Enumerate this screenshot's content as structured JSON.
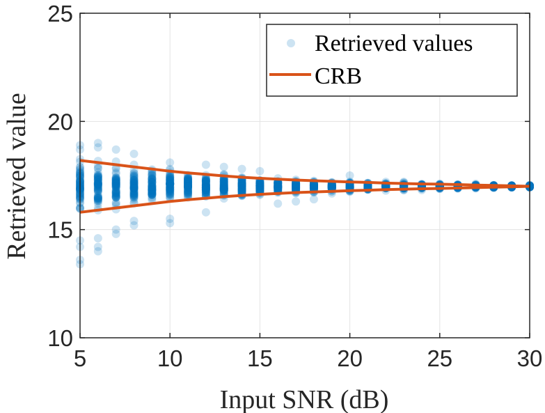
{
  "chart_data": {
    "type": "scatter",
    "xlabel": "Input SNR (dB)",
    "ylabel": "Retrieved value",
    "xlim": [
      5,
      30
    ],
    "ylim": [
      10,
      25
    ],
    "xticks": [
      "5",
      "10",
      "15",
      "20",
      "25",
      "30"
    ],
    "yticks": [
      "10",
      "15",
      "20",
      "25"
    ],
    "grid": true,
    "legend": {
      "placement": "top-right",
      "entries": [
        "Retrieved values",
        "CRB"
      ]
    },
    "series": [
      {
        "name": "Retrieved values",
        "kind": "scatter",
        "color": "#0072BD",
        "x": [
          5,
          6,
          7,
          8,
          9,
          10,
          11,
          12,
          13,
          14,
          15,
          16,
          17,
          18,
          19,
          20,
          21,
          22,
          23,
          24,
          25,
          26,
          27,
          28,
          29,
          30
        ],
        "center": 17.0,
        "dense_min": [
          15.0,
          15.2,
          15.4,
          15.6,
          15.7,
          15.8,
          15.95,
          16.05,
          16.15,
          16.25,
          16.35,
          16.45,
          16.5,
          16.55,
          16.6,
          16.65,
          16.7,
          16.72,
          16.75,
          16.78,
          16.8,
          16.83,
          16.85,
          16.87,
          16.9,
          16.92
        ],
        "dense_max": [
          19.0,
          18.8,
          18.6,
          18.4,
          18.3,
          18.2,
          18.05,
          17.95,
          17.85,
          17.75,
          17.65,
          17.55,
          17.5,
          17.45,
          17.4,
          17.35,
          17.3,
          17.28,
          17.25,
          17.22,
          17.2,
          17.17,
          17.15,
          17.13,
          17.1,
          17.08
        ],
        "outliers": [
          [
            5,
            13.4
          ],
          [
            5,
            13.6
          ],
          [
            5,
            14.2
          ],
          [
            5,
            14.5
          ],
          [
            5,
            18.9
          ],
          [
            5,
            18.7
          ],
          [
            6,
            14.0
          ],
          [
            6,
            14.2
          ],
          [
            6,
            14.6
          ],
          [
            6,
            19.0
          ],
          [
            6,
            18.8
          ],
          [
            7,
            14.8
          ],
          [
            7,
            15.0
          ],
          [
            7,
            18.7
          ],
          [
            8,
            15.2
          ],
          [
            8,
            15.4
          ],
          [
            8,
            18.5
          ],
          [
            10,
            15.3
          ],
          [
            10,
            15.5
          ],
          [
            10,
            18.1
          ],
          [
            12,
            15.8
          ],
          [
            12,
            18.0
          ],
          [
            13,
            17.9
          ],
          [
            14,
            17.8
          ],
          [
            15,
            17.7
          ],
          [
            16,
            16.2
          ],
          [
            17,
            16.3
          ],
          [
            18,
            16.4
          ],
          [
            20,
            17.5
          ]
        ]
      },
      {
        "name": "CRB",
        "kind": "line",
        "color": "#D95319",
        "x": [
          5,
          6,
          7,
          8,
          9,
          10,
          11,
          12,
          13,
          14,
          15,
          16,
          17,
          18,
          19,
          20,
          21,
          22,
          23,
          24,
          25,
          26,
          27,
          28,
          29,
          30
        ],
        "upper": [
          18.2,
          18.1,
          18.0,
          17.9,
          17.8,
          17.7,
          17.62,
          17.55,
          17.48,
          17.42,
          17.37,
          17.33,
          17.29,
          17.26,
          17.23,
          17.2,
          17.18,
          17.15,
          17.13,
          17.11,
          17.1,
          17.08,
          17.06,
          17.04,
          17.02,
          17.0
        ],
        "lower": [
          15.8,
          15.9,
          16.0,
          16.1,
          16.2,
          16.3,
          16.38,
          16.45,
          16.52,
          16.58,
          16.63,
          16.67,
          16.71,
          16.74,
          16.77,
          16.8,
          16.82,
          16.85,
          16.87,
          16.89,
          16.9,
          16.92,
          16.94,
          16.96,
          16.98,
          17.0
        ]
      }
    ]
  }
}
